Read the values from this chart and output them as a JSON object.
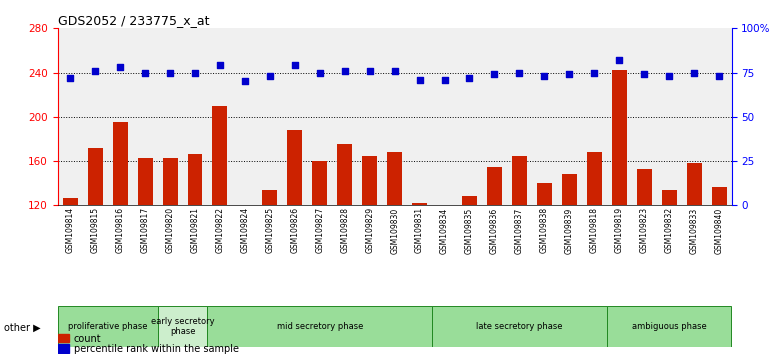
{
  "title": "GDS2052 / 233775_x_at",
  "samples": [
    "GSM109814",
    "GSM109815",
    "GSM109816",
    "GSM109817",
    "GSM109820",
    "GSM109821",
    "GSM109822",
    "GSM109824",
    "GSM109825",
    "GSM109826",
    "GSM109827",
    "GSM109828",
    "GSM109829",
    "GSM109830",
    "GSM109831",
    "GSM109834",
    "GSM109835",
    "GSM109836",
    "GSM109837",
    "GSM109838",
    "GSM109839",
    "GSM109818",
    "GSM109819",
    "GSM109823",
    "GSM109832",
    "GSM109833",
    "GSM109840"
  ],
  "counts": [
    127,
    172,
    195,
    163,
    163,
    166,
    210,
    117,
    134,
    188,
    160,
    175,
    165,
    168,
    122,
    118,
    128,
    155,
    165,
    140,
    148,
    168,
    242,
    153,
    134,
    158,
    137
  ],
  "percentile_ranks": [
    72,
    76,
    78,
    75,
    75,
    75,
    79,
    70,
    73,
    79,
    75,
    76,
    76,
    76,
    71,
    71,
    72,
    74,
    75,
    73,
    74,
    75,
    82,
    74,
    73,
    75,
    73
  ],
  "phases": [
    {
      "label": "proliferative phase",
      "start": 0,
      "end": 4,
      "color": "#88cc88"
    },
    {
      "label": "early secretory\nphase",
      "start": 4,
      "end": 6,
      "color": "#bbeeaa"
    },
    {
      "label": "mid secretory phase",
      "start": 6,
      "end": 15,
      "color": "#88cc88"
    },
    {
      "label": "late secretory phase",
      "start": 15,
      "end": 22,
      "color": "#88cc88"
    },
    {
      "label": "ambiguous phase",
      "start": 22,
      "end": 27,
      "color": "#88cc88"
    }
  ],
  "bar_color": "#cc2200",
  "dot_color": "#0000cc",
  "ylim_left": [
    120,
    280
  ],
  "ylim_right": [
    0,
    100
  ],
  "yticks_left": [
    120,
    160,
    200,
    240,
    280
  ],
  "yticks_right": [
    0,
    25,
    50,
    75,
    100
  ],
  "ytick_labels_right": [
    "0",
    "25",
    "50",
    "75",
    "100%"
  ],
  "grid_values": [
    160,
    200,
    240
  ],
  "plot_bg": "#f0f0f0"
}
